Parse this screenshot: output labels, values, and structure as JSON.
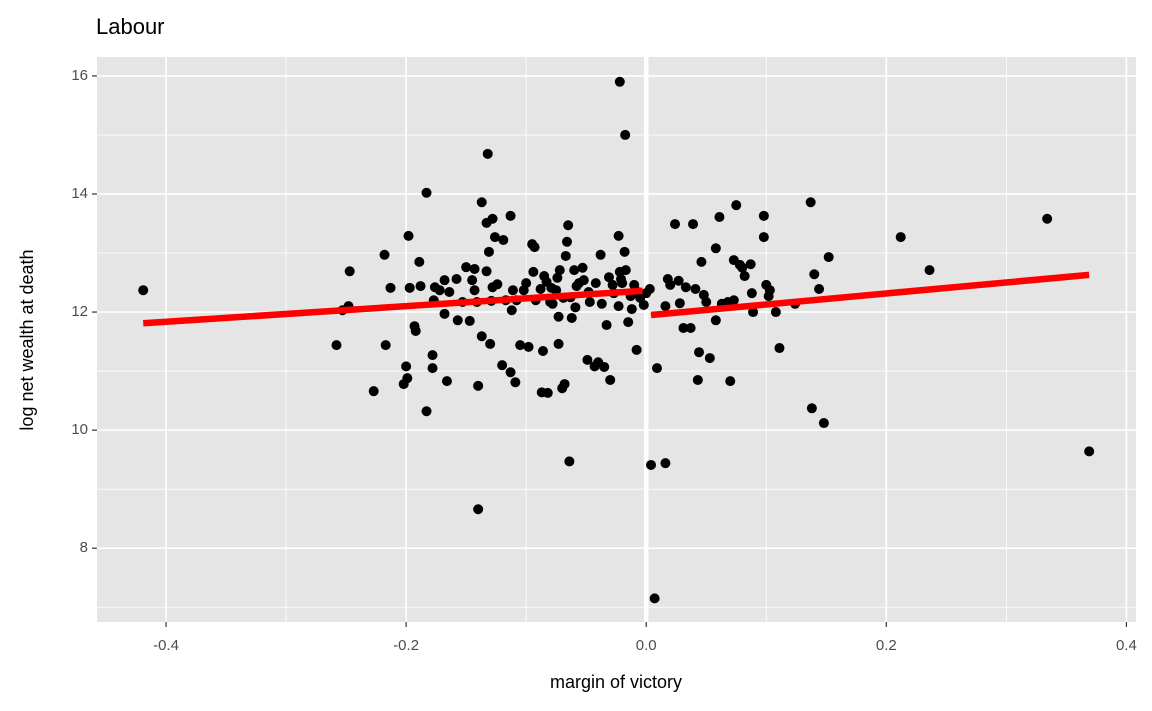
{
  "chart_data": {
    "type": "scatter",
    "title": "Labour",
    "x_label": "margin of victory",
    "y_label": "log net wealth at death",
    "xlim": [
      -0.4575,
      0.408
    ],
    "ylim": [
      6.75,
      16.32
    ],
    "xticks": [
      -0.4,
      -0.2,
      {
        "value": 0,
        "label": "0.0"
      },
      0.2,
      0.4
    ],
    "yticks": [
      8,
      10,
      12,
      14,
      16
    ],
    "xminor": [
      -0.3,
      -0.1,
      0.1,
      0.3
    ],
    "yminor": [
      7,
      9,
      11,
      13,
      15
    ],
    "grid": true,
    "panel_color": "#e5e5e5",
    "vline": 0,
    "vline_color": "#ffffff",
    "series": [
      {
        "color": "#000000",
        "x": [
          -0.419,
          -0.258,
          -0.253,
          -0.248,
          -0.247,
          -0.227,
          -0.218,
          -0.217,
          -0.213,
          -0.202,
          -0.2,
          -0.199,
          -0.198,
          -0.197,
          -0.193,
          -0.192,
          -0.189,
          -0.188,
          -0.183,
          -0.183,
          -0.178,
          -0.178,
          -0.177,
          -0.176,
          -0.172,
          -0.168,
          -0.168,
          -0.166,
          -0.164,
          -0.158,
          -0.157,
          -0.153,
          -0.15,
          -0.147,
          -0.145,
          -0.143,
          -0.143,
          -0.141,
          -0.14,
          -0.14,
          -0.137,
          -0.137,
          -0.133,
          -0.133,
          -0.132,
          -0.131,
          -0.13,
          -0.129,
          -0.128,
          -0.128,
          -0.126,
          -0.124,
          -0.12,
          -0.119,
          -0.117,
          -0.113,
          -0.113,
          -0.112,
          -0.111,
          -0.109,
          -0.108,
          -0.105,
          -0.102,
          -0.1,
          -0.098,
          -0.095,
          -0.094,
          -0.093,
          -0.092,
          -0.088,
          -0.087,
          -0.086,
          -0.085,
          -0.083,
          -0.082,
          -0.08,
          -0.079,
          -0.078,
          -0.075,
          -0.074,
          -0.073,
          -0.073,
          -0.072,
          -0.07,
          -0.069,
          -0.068,
          -0.067,
          -0.066,
          -0.065,
          -0.064,
          -0.063,
          -0.062,
          -0.06,
          -0.059,
          -0.058,
          -0.056,
          -0.053,
          -0.052,
          -0.049,
          -0.048,
          -0.047,
          -0.043,
          -0.042,
          -0.04,
          -0.038,
          -0.037,
          -0.035,
          -0.033,
          -0.031,
          -0.03,
          -0.028,
          -0.027,
          -0.023,
          -0.023,
          -0.022,
          -0.022,
          -0.021,
          -0.02,
          -0.018,
          -0.0175,
          -0.017,
          -0.015,
          -0.013,
          -0.012,
          -0.01,
          -0.008,
          -0.007,
          -0.005,
          -0.002,
          0,
          0.003,
          0.004,
          0.007,
          0.009,
          0.016,
          0.016,
          0.018,
          0.02,
          0.024,
          0.027,
          0.028,
          0.031,
          0.033,
          0.037,
          0.039,
          0.041,
          0.043,
          0.044,
          0.046,
          0.048,
          0.05,
          0.053,
          0.058,
          0.058,
          0.061,
          0.063,
          0.068,
          0.07,
          0.073,
          0.073,
          0.075,
          0.078,
          0.08,
          0.082,
          0.087,
          0.088,
          0.089,
          0.098,
          0.098,
          0.1,
          0.102,
          0.103,
          0.108,
          0.111,
          0.124,
          0.137,
          0.138,
          0.14,
          0.144,
          0.148,
          0.152,
          0.212,
          0.236,
          0.334,
          0.369
        ],
        "y": [
          12.37,
          11.44,
          12.03,
          12.1,
          12.69,
          10.66,
          12.97,
          11.44,
          12.41,
          10.78,
          11.08,
          10.88,
          13.29,
          12.41,
          11.76,
          11.68,
          12.85,
          12.44,
          10.32,
          14.02,
          11.27,
          11.05,
          12.2,
          12.42,
          12.37,
          12.54,
          11.97,
          10.83,
          12.34,
          12.56,
          11.86,
          12.17,
          12.76,
          11.85,
          12.54,
          12.73,
          12.37,
          12.17,
          10.75,
          8.66,
          13.86,
          11.59,
          12.69,
          13.51,
          14.68,
          13.02,
          11.46,
          12.19,
          13.58,
          12.42,
          13.27,
          12.47,
          11.1,
          13.22,
          12.2,
          13.63,
          10.98,
          12.03,
          12.37,
          10.81,
          12.2,
          11.44,
          12.37,
          12.49,
          11.41,
          13.15,
          12.68,
          13.1,
          12.2,
          12.39,
          10.64,
          11.34,
          12.61,
          12.51,
          10.63,
          12.17,
          12.41,
          12.14,
          12.37,
          12.58,
          11.92,
          11.46,
          12.71,
          10.71,
          12.24,
          10.78,
          12.95,
          13.19,
          13.47,
          9.47,
          12.25,
          11.9,
          12.71,
          12.08,
          12.44,
          12.49,
          12.75,
          12.54,
          11.19,
          12.34,
          12.17,
          11.08,
          12.49,
          11.15,
          12.97,
          12.14,
          11.07,
          11.78,
          12.59,
          10.85,
          12.46,
          12.32,
          13.29,
          12.1,
          15.9,
          12.68,
          12.56,
          12.49,
          13.02,
          15.0,
          12.71,
          11.83,
          12.27,
          12.05,
          12.46,
          11.36,
          12.34,
          12.24,
          12.12,
          12.32,
          12.39,
          9.41,
          7.15,
          11.05,
          9.44,
          12.1,
          12.56,
          12.46,
          13.49,
          12.53,
          12.15,
          11.73,
          12.42,
          11.73,
          13.49,
          12.39,
          10.85,
          11.32,
          12.85,
          12.29,
          12.17,
          11.22,
          11.86,
          13.08,
          13.61,
          12.14,
          12.17,
          10.83,
          12.88,
          12.2,
          13.81,
          12.8,
          12.75,
          12.61,
          12.81,
          12.32,
          12.0,
          13.63,
          13.27,
          12.46,
          12.27,
          12.37,
          12.0,
          11.39,
          12.14,
          13.86,
          10.37,
          12.64,
          12.39,
          10.12,
          12.93,
          13.27,
          12.71,
          13.58,
          9.64
        ]
      }
    ],
    "fits": [
      {
        "color": "#ff0000",
        "x": [
          -0.419,
          -0.003
        ],
        "y": [
          11.81,
          12.36
        ]
      },
      {
        "color": "#ff0000",
        "x": [
          0.004,
          0.369
        ],
        "y": [
          11.95,
          12.63
        ]
      }
    ]
  }
}
